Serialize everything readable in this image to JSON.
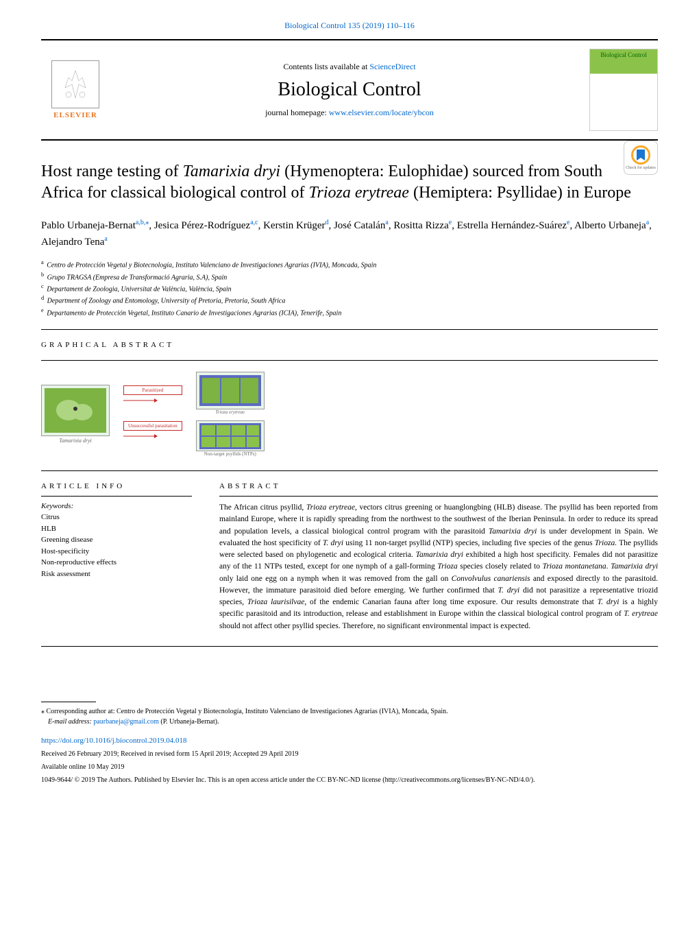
{
  "top_citation": "Biological Control 135 (2019) 110–116",
  "contents_text": "Contents lists available at ",
  "sciencedirect": "ScienceDirect",
  "journal_name": "Biological Control",
  "homepage_label": "journal homepage: ",
  "homepage_url": "www.elsevier.com/locate/ybcon",
  "elsevier_label": "ELSEVIER",
  "cover_title": "Biological Control",
  "check_updates": "Check for updates",
  "title_part1": "Host range testing of ",
  "title_italic1": "Tamarixia dryi",
  "title_part2": " (Hymenoptera: Eulophidae) sourced from South Africa for classical biological control of ",
  "title_italic2": "Trioza erytreae",
  "title_part3": " (Hemiptera: Psyllidae) in Europe",
  "authors": [
    {
      "name": "Pablo Urbaneja-Bernat",
      "sup": "a,b,⁎"
    },
    {
      "name": "Jesica Pérez-Rodríguez",
      "sup": "a,c"
    },
    {
      "name": "Kerstin Krüger",
      "sup": "d"
    },
    {
      "name": "José Catalán",
      "sup": "a"
    },
    {
      "name": "Rositta Rizza",
      "sup": "e"
    },
    {
      "name": "Estrella Hernández-Suárez",
      "sup": "e"
    },
    {
      "name": "Alberto Urbaneja",
      "sup": "a"
    },
    {
      "name": "Alejandro Tena",
      "sup": "a"
    }
  ],
  "affiliations": [
    {
      "sup": "a",
      "text": "Centro de Protección Vegetal y Biotecnología, Instituto Valenciano de Investigaciones Agrarias (IVIA), Moncada, Spain"
    },
    {
      "sup": "b",
      "text": "Grupo TRAGSA (Empresa de Transformació Agraria, S.A), Spain"
    },
    {
      "sup": "c",
      "text": "Departament de Zoologia, Universitat de València, València, Spain"
    },
    {
      "sup": "d",
      "text": "Department of Zoology and Entomology, University of Pretoria, Pretoria, South Africa"
    },
    {
      "sup": "e",
      "text": "Departamento de Protección Vegetal, Instituto Canario de Investigaciones Agrarias (ICIA), Tenerife, Spain"
    }
  ],
  "graphical_heading": "GRAPHICAL ABSTRACT",
  "ga": {
    "left_label": "Tamarixia dryi",
    "arrow1": "Parasitized",
    "arrow2": "Unsuccessful parasitation",
    "right1_label": "Trioza erytreae",
    "right2_label": "Non-target psyllids (NTPs)"
  },
  "article_info_heading": "ARTICLE INFO",
  "abstract_heading": "ABSTRACT",
  "keywords_label": "Keywords:",
  "keywords": [
    "Citrus",
    "HLB",
    "Greening disease",
    "Host-specificity",
    "Non-reproductive effects",
    "Risk assessment"
  ],
  "abstract": "The African citrus psyllid, Trioza erytreae, vectors citrus greening or huanglongbing (HLB) disease. The psyllid has been reported from mainland Europe, where it is rapidly spreading from the northwest to the southwest of the Iberian Peninsula. In order to reduce its spread and population levels, a classical biological control program with the parasitoid Tamarixia dryi is under development in Spain. We evaluated the host specificity of T. dryi using 11 non-target psyllid (NTP) species, including five species of the genus Trioza. The psyllids were selected based on phylogenetic and ecological criteria. Tamarixia dryi exhibited a high host specificity. Females did not parasitize any of the 11 NTPs tested, except for one nymph of a gall-forming Trioza species closely related to Trioza montanetana. Tamarixia dryi only laid one egg on a nymph when it was removed from the gall on Convolvulus canariensis and exposed directly to the parasitoid. However, the immature parasitoid died before emerging. We further confirmed that T. dryi did not parasitize a representative triozid species, Trioza laurisilvae, of the endemic Canarian fauna after long time exposure. Our results demonstrate that T. dryi is a highly specific parasitoid and its introduction, release and establishment in Europe within the classical biological control program of T. erytreae should not affect other psyllid species. Therefore, no significant environmental impact is expected.",
  "corresponding": "⁎ Corresponding author at: Centro de Protección Vegetal y Biotecnología, Instituto Valenciano de Investigaciones Agrarias (IVIA), Moncada, Spain.",
  "email_label": "E-mail address: ",
  "email": "paurbaneja@gmail.com",
  "email_author": " (P. Urbaneja-Bernat).",
  "doi": "https://doi.org/10.1016/j.biocontrol.2019.04.018",
  "received": "Received 26 February 2019; Received in revised form 15 April 2019; Accepted 29 April 2019",
  "available": "Available online 10 May 2019",
  "copyright": "1049-9644/ © 2019 The Authors. Published by Elsevier Inc. This is an open access article under the CC BY-NC-ND license (http://creativecommons.org/licenses/BY-NC-ND/4.0/).",
  "colors": {
    "link": "#0066cc",
    "elsevier_orange": "#e87722",
    "arrow_red": "#c62828"
  }
}
